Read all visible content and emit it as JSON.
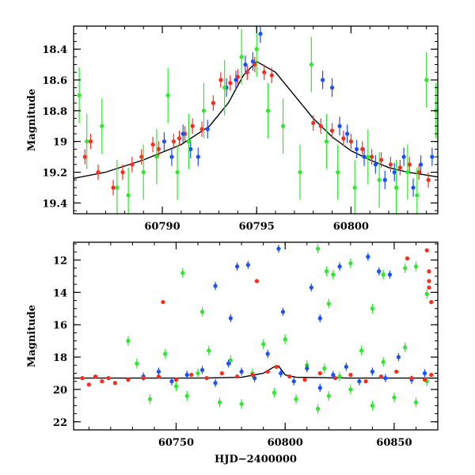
{
  "chart_data": [
    {
      "type": "scatter",
      "panel": "top",
      "title": "",
      "xlabel": "",
      "ylabel": "Magnitude",
      "xlim": [
        60785.3,
        60804.6
      ],
      "ylim": [
        19.47,
        18.25
      ],
      "y_inverted": true,
      "xticks": [
        60790,
        60795,
        60800
      ],
      "xtick_labels": [
        "60790",
        "60795",
        "60800"
      ],
      "yticks": [
        18.4,
        18.6,
        18.8,
        19.0,
        19.2,
        19.4
      ],
      "ytick_labels": [
        "18.4",
        "18.6",
        "18.8",
        "19",
        "19.2",
        "19.4"
      ],
      "grid": false,
      "legend": "none",
      "model_curve": {
        "name": "",
        "color": "#000000",
        "x": [
          60785.3,
          60787,
          60789,
          60791,
          60792.5,
          60793.5,
          60794.3,
          60795,
          60796,
          60797,
          60798,
          60799,
          60800,
          60801,
          60802,
          60803,
          60804.6
        ],
        "y": [
          19.24,
          19.2,
          19.12,
          19.02,
          18.9,
          18.75,
          18.57,
          18.48,
          18.55,
          18.7,
          18.85,
          18.97,
          19.06,
          19.12,
          19.17,
          19.2,
          19.23
        ]
      },
      "series": [
        {
          "name": "",
          "color": "#ff2a1a",
          "x": [
            60785.9,
            60786.2,
            60786.6,
            60787.4,
            60787.9,
            60788.4,
            60788.9,
            60789.5,
            60789.8,
            60790.6,
            60790.9,
            60791.2,
            60791.6,
            60792.1,
            60792.7,
            60793.1,
            60793.6,
            60794.0,
            60794.5,
            60794.9,
            60795.4,
            60795.8,
            60798.0,
            60798.4,
            60799.0,
            60799.6,
            60800.0,
            60800.6,
            60801.1,
            60801.6,
            60802.1,
            60802.6,
            60803.1,
            60803.6,
            60804.1
          ],
          "y": [
            19.1,
            19.0,
            19.2,
            19.3,
            19.2,
            19.15,
            19.1,
            19.02,
            19.05,
            19.0,
            18.98,
            18.95,
            18.9,
            18.92,
            18.75,
            18.6,
            18.62,
            18.58,
            18.55,
            18.5,
            18.55,
            18.57,
            18.88,
            18.9,
            18.93,
            18.98,
            19.0,
            19.05,
            19.1,
            19.12,
            19.15,
            19.17,
            19.15,
            19.2,
            19.25
          ],
          "yerr": 0.05
        },
        {
          "name": "",
          "color": "#1a4fff",
          "x": [
            60790.1,
            60790.5,
            60791.1,
            60791.5,
            60791.9,
            60792.4,
            60793.4,
            60793.9,
            60794.4,
            60794.8,
            60795.2,
            60798.5,
            60799.0,
            60799.4,
            60799.8,
            60800.3,
            60800.7,
            60801.3,
            60801.8,
            60802.3,
            60802.8,
            60803.3,
            60803.7,
            60804.3
          ],
          "y": [
            19.0,
            19.1,
            18.95,
            19.05,
            19.1,
            18.92,
            18.65,
            18.6,
            18.5,
            18.48,
            18.3,
            18.6,
            18.65,
            18.9,
            18.95,
            19.05,
            19.1,
            19.15,
            19.25,
            19.2,
            19.1,
            19.3,
            19.15,
            19.1
          ],
          "yerr": 0.06
        },
        {
          "name": "",
          "color": "#2ee82e",
          "x": [
            60785.6,
            60786.0,
            60786.8,
            60787.6,
            60788.2,
            60789.0,
            60789.7,
            60790.3,
            60790.8,
            60791.4,
            60792.2,
            60793.3,
            60794.2,
            60795.0,
            60795.6,
            60796.4,
            60797.3,
            60797.9,
            60798.7,
            60799.3,
            60800.2,
            60800.9,
            60801.5,
            60802.4,
            60803.0,
            60803.5,
            60804.0,
            60804.5
          ],
          "y": [
            18.7,
            19.0,
            18.9,
            19.3,
            19.35,
            19.2,
            19.1,
            18.7,
            19.2,
            19.0,
            18.8,
            18.65,
            18.45,
            18.4,
            18.8,
            18.9,
            19.2,
            18.5,
            19.0,
            19.2,
            19.3,
            19.1,
            19.25,
            19.3,
            19.2,
            19.35,
            18.6,
            18.8
          ],
          "yerr": 0.18
        }
      ]
    },
    {
      "type": "scatter",
      "panel": "bottom",
      "title": "",
      "xlabel": "HJD−2400000",
      "ylabel": "Magnitude",
      "xlim": [
        60703,
        60870
      ],
      "ylim": [
        22.5,
        10.9
      ],
      "y_inverted": true,
      "xticks": [
        60750,
        60800,
        60850
      ],
      "xtick_labels": [
        "60750",
        "60800",
        "60850"
      ],
      "yticks": [
        12,
        14,
        16,
        18,
        20,
        22
      ],
      "ytick_labels": [
        "12",
        "14",
        "16",
        "18",
        "20",
        "22"
      ],
      "grid": false,
      "legend": "none",
      "model_curve": {
        "name": "",
        "color": "#000000",
        "x": [
          60703,
          60725,
          60760,
          60780,
          60790,
          60795,
          60797,
          60800,
          60805,
          60830,
          60870
        ],
        "y": [
          19.3,
          19.3,
          19.3,
          19.25,
          19.0,
          18.6,
          18.55,
          19.1,
          19.25,
          19.3,
          19.3
        ]
      },
      "series": [
        {
          "name": "",
          "color": "#2ee82e",
          "x": [
            60728,
            60732,
            60738,
            60745,
            60750,
            60755,
            60760,
            60765,
            60770,
            60775,
            60780,
            60785,
            60790,
            60795,
            60800,
            60805,
            60810,
            60815,
            60818,
            60820,
            60825,
            60830,
            60835,
            60840,
            60845,
            60850,
            60855,
            60860,
            60865,
            60753,
            60762,
            60815,
            60819,
            60822,
            60830,
            60845,
            60855,
            60860,
            60865,
            60820,
            60840
          ],
          "y": [
            17.0,
            18.4,
            20.6,
            17.8,
            19.8,
            20.4,
            19.0,
            17.6,
            20.8,
            18.2,
            20.9,
            19.0,
            17.2,
            20.2,
            16.9,
            20.6,
            18.5,
            21.2,
            18.7,
            20.4,
            19.2,
            20.0,
            17.6,
            21.0,
            18.3,
            20.5,
            17.4,
            20.8,
            19.5,
            12.8,
            15.2,
            11.3,
            12.7,
            12.9,
            12.2,
            12.9,
            12.5,
            12.4,
            14.1,
            14.7,
            15.0
          ],
          "yerr": 0.3
        },
        {
          "name": "",
          "color": "#1a4fff",
          "x": [
            60735,
            60742,
            60748,
            60755,
            60762,
            60768,
            60774,
            60780,
            60786,
            60792,
            60798,
            60804,
            60810,
            60816,
            60822,
            60828,
            60834,
            60840,
            60846,
            60852,
            60858,
            60864,
            60768,
            60775,
            60778,
            60783,
            60797,
            60799,
            60812,
            60816,
            60825,
            60838,
            60843,
            60848
          ],
          "y": [
            19.2,
            18.9,
            19.5,
            19.1,
            18.8,
            19.6,
            18.4,
            18.9,
            19.3,
            17.8,
            19.0,
            19.5,
            18.7,
            19.9,
            19.1,
            18.6,
            19.5,
            18.9,
            19.3,
            18.0,
            19.4,
            19.0,
            13.6,
            15.6,
            12.4,
            12.3,
            11.3,
            15.2,
            13.7,
            15.6,
            12.4,
            11.8,
            12.7,
            12.9
          ],
          "yerr": 0.25
        },
        {
          "name": "",
          "color": "#ff2a1a",
          "x": [
            60707,
            60710,
            60713,
            60716,
            60719,
            60722,
            60728,
            60735,
            60742,
            60750,
            60757,
            60764,
            60771,
            60778,
            60785,
            60792,
            60796,
            60802,
            60809,
            60816,
            60823,
            60830,
            60837,
            60844,
            60851,
            60858,
            60864,
            60867,
            60744,
            60787,
            60856,
            60865,
            60866,
            60866,
            60866,
            60867
          ],
          "y": [
            19.3,
            19.7,
            19.2,
            19.5,
            19.3,
            19.6,
            19.4,
            19.3,
            19.2,
            19.4,
            19.1,
            19.3,
            19.0,
            19.2,
            19.1,
            18.9,
            18.6,
            19.2,
            19.4,
            19.0,
            19.3,
            19.1,
            19.5,
            19.2,
            18.9,
            19.3,
            19.4,
            19.1,
            14.6,
            13.3,
            11.9,
            11.4,
            12.7,
            13.3,
            13.7,
            14.6
          ],
          "yerr": 0.12
        }
      ]
    }
  ]
}
